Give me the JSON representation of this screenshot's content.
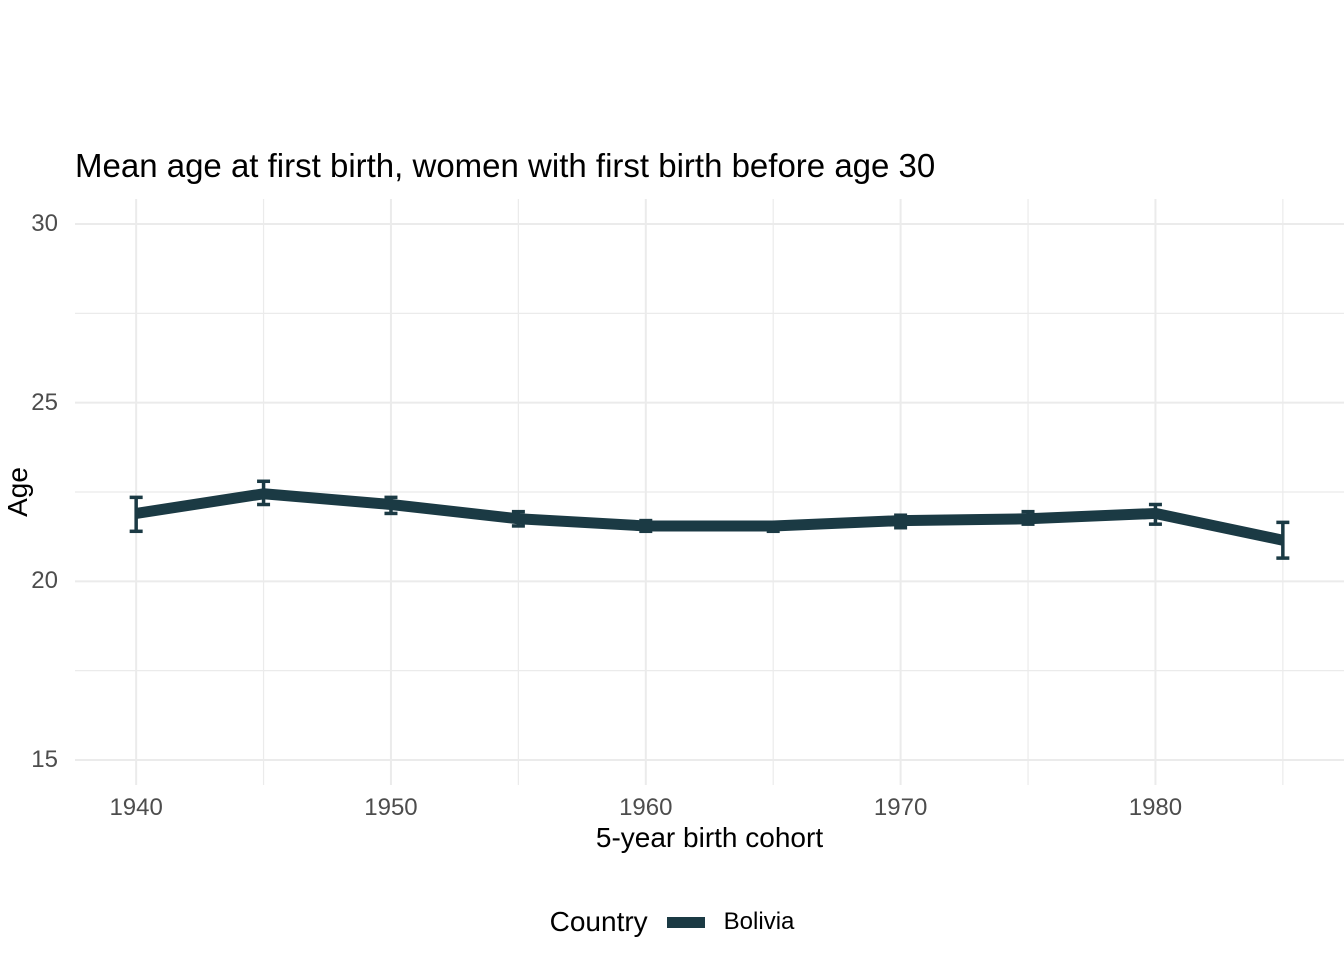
{
  "figure": {
    "title": "Mean age at first birth, women with first birth before age 30",
    "x_axis": {
      "label": "5-year birth cohort",
      "tick_labels": [
        "1940",
        "1950",
        "1960",
        "1970",
        "1980"
      ]
    },
    "y_axis": {
      "label": "Age",
      "tick_labels": [
        "30",
        "25",
        "20",
        "15"
      ]
    },
    "legend": {
      "title": "Country",
      "entries": [
        {
          "label": "Bolivia",
          "color": "#1b3a44"
        }
      ]
    }
  },
  "colors": {
    "series_line": "#1b3a44",
    "grid_major": "#ebebeb",
    "grid_minor": "#ebebeb",
    "tick_text": "#4d4d4d",
    "title_text": "#000000",
    "background": "#ffffff"
  },
  "chart_data": {
    "type": "line",
    "title": "Mean age at first birth, women with first birth before age 30",
    "xlabel": "5-year birth cohort",
    "ylabel": "Age",
    "xlim": [
      1937.6,
      1987.4
    ],
    "ylim": [
      14.3,
      30.7
    ],
    "x_major_ticks": [
      1940,
      1950,
      1960,
      1970,
      1980
    ],
    "x_minor_gridlines": [
      1945,
      1955,
      1965,
      1975,
      1985
    ],
    "y_major_ticks": [
      30,
      25,
      20,
      15
    ],
    "y_minor_gridlines": [
      27.5,
      22.5,
      17.5
    ],
    "grid": true,
    "error_bars": true,
    "legend_position": "bottom",
    "series": [
      {
        "name": "Bolivia",
        "color": "#1b3a44",
        "x": [
          1940,
          1945,
          1950,
          1955,
          1960,
          1965,
          1970,
          1975,
          1980,
          1985
        ],
        "mean": [
          21.9,
          22.45,
          22.15,
          21.75,
          21.55,
          21.55,
          21.7,
          21.75,
          21.9,
          21.15
        ],
        "lower": [
          21.4,
          22.15,
          21.9,
          21.55,
          21.4,
          21.4,
          21.5,
          21.6,
          21.6,
          20.65
        ],
        "upper": [
          22.35,
          22.8,
          22.35,
          21.95,
          21.7,
          21.65,
          21.85,
          21.95,
          22.15,
          21.65
        ]
      }
    ]
  }
}
